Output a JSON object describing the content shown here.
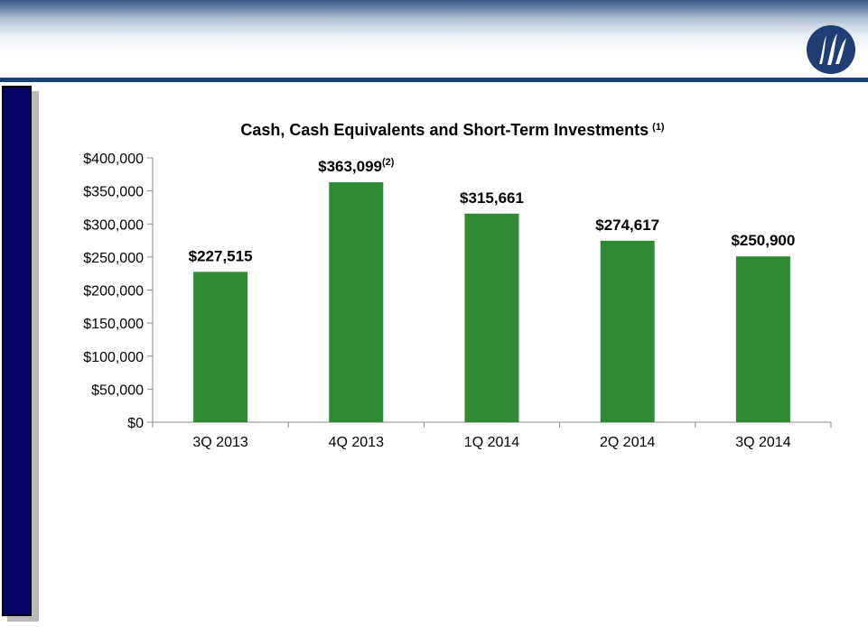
{
  "slide": {
    "accent_color": "#1f3f74",
    "side_panel_color": "#050568",
    "logo_icon": "company-logo-icon"
  },
  "chart_data": {
    "type": "bar",
    "title": "Cash, Cash Equivalents and Short-Term Investments",
    "title_footnote": "(1)",
    "categories": [
      "3Q 2013",
      "4Q 2013",
      "1Q 2014",
      "2Q 2014",
      "3Q 2014"
    ],
    "values": [
      227515,
      363099,
      315661,
      274617,
      250900
    ],
    "data_labels": [
      "$227,515",
      "$363,099",
      "$315,661",
      "$274,617",
      "$250,900"
    ],
    "data_label_footnotes": [
      "",
      "(2)",
      "",
      "",
      ""
    ],
    "y_ticks": [
      "$0",
      "$50,000",
      "$100,000",
      "$150,000",
      "$200,000",
      "$250,000",
      "$300,000",
      "$350,000",
      "$400,000"
    ],
    "ylim": [
      0,
      400000
    ],
    "xlabel": "",
    "ylabel": "",
    "bar_color": "#2e8b34",
    "grid": false,
    "legend": "none"
  }
}
